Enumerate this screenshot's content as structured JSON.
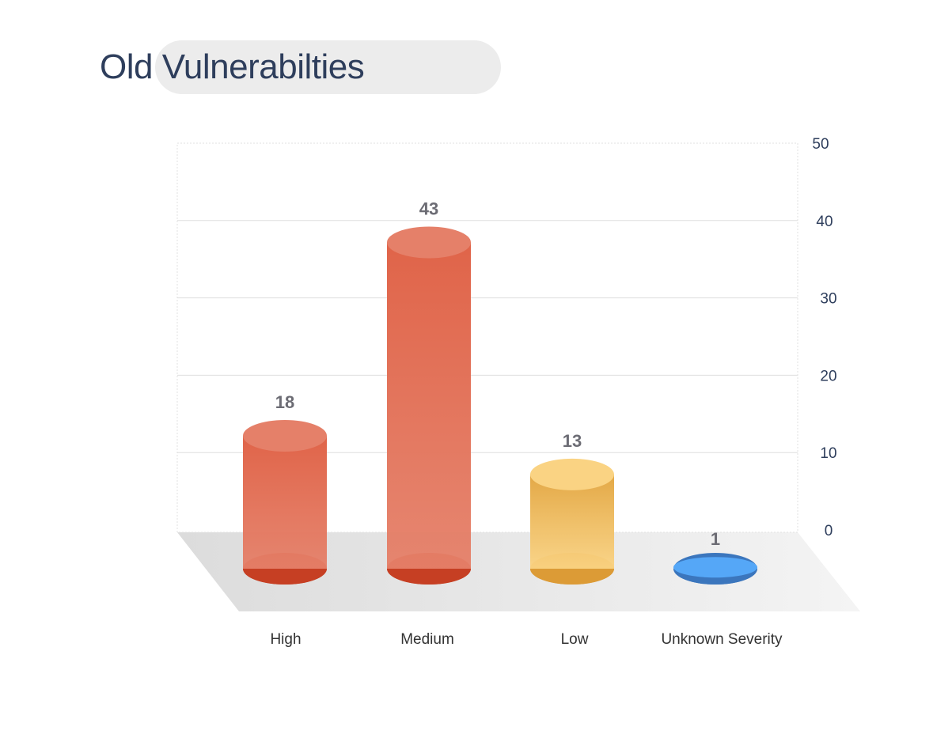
{
  "chart_data": {
    "type": "bar",
    "style": "3d-cylinder",
    "title": "Old Vulnerabilties",
    "categories": [
      "High",
      "Medium",
      "Low",
      "Unknown Severity"
    ],
    "values": [
      18,
      43,
      13,
      1
    ],
    "ylim": [
      0,
      50
    ],
    "yticks": [
      "0",
      "10",
      "20",
      "30",
      "40",
      "50"
    ],
    "y_axis_side": "right",
    "grid": true,
    "legend": "none",
    "series_colors": [
      {
        "top": "#e58069",
        "body": "#e06449",
        "bottom": "#c63f23"
      },
      {
        "top": "#e58069",
        "body": "#e06449",
        "bottom": "#c63f23"
      },
      {
        "top": "#fad383",
        "body": "#e3a846",
        "bottom": "#dc9b36"
      },
      {
        "top": "#55a7f7",
        "body": "#4a8fe0",
        "bottom": "#3b76bd"
      }
    ]
  }
}
